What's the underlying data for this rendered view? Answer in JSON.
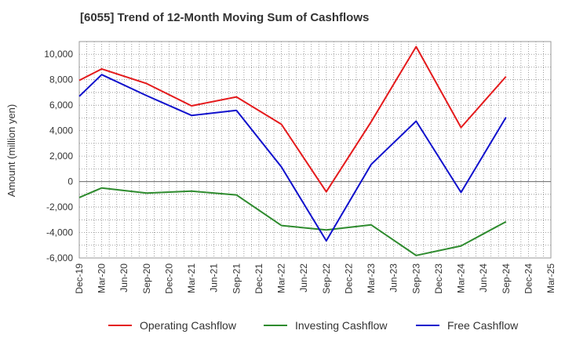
{
  "chart_data": {
    "type": "line",
    "title": "[6055]  Trend of 12-Month Moving Sum of Cashflows",
    "xlabel": "",
    "ylabel": "Amount (million yen)",
    "ylim": [
      -6000,
      11000
    ],
    "yticks": [
      -6000,
      -4000,
      -2000,
      0,
      2000,
      4000,
      6000,
      8000,
      10000
    ],
    "ytick_labels": [
      "-6,000",
      "-4,000",
      "-2,000",
      "0",
      "2,000",
      "4,000",
      "6,000",
      "8,000",
      "10,000"
    ],
    "categories": [
      "Dec-19",
      "Mar-20",
      "Jun-20",
      "Sep-20",
      "Dec-20",
      "Mar-21",
      "Jun-21",
      "Sep-21",
      "Dec-21",
      "Mar-22",
      "Jun-22",
      "Sep-22",
      "Dec-22",
      "Mar-23",
      "Jun-23",
      "Sep-23",
      "Dec-23",
      "Mar-24",
      "Jun-24",
      "Sep-24",
      "Dec-24",
      "Mar-25"
    ],
    "grid": true,
    "legend_position": "bottom",
    "series": [
      {
        "name": "Operating Cashflow",
        "color": "#e41a1c",
        "values": [
          7950,
          8850,
          null,
          7700,
          null,
          5950,
          null,
          6650,
          null,
          4500,
          null,
          -800,
          null,
          4700,
          null,
          10600,
          null,
          4250,
          null,
          8250,
          null,
          null
        ]
      },
      {
        "name": "Investing Cashflow",
        "color": "#2e8b2e",
        "values": [
          -1250,
          -500,
          null,
          -900,
          null,
          -750,
          null,
          -1050,
          null,
          -3450,
          null,
          -3800,
          null,
          -3400,
          null,
          -5800,
          null,
          -5050,
          null,
          -3150,
          null,
          null
        ]
      },
      {
        "name": "Free Cashflow",
        "color": "#1010cc",
        "values": [
          6700,
          8400,
          null,
          6750,
          null,
          5200,
          null,
          5600,
          null,
          1150,
          null,
          -4650,
          null,
          1350,
          null,
          4750,
          null,
          -850,
          null,
          5050,
          null,
          null
        ]
      }
    ]
  }
}
